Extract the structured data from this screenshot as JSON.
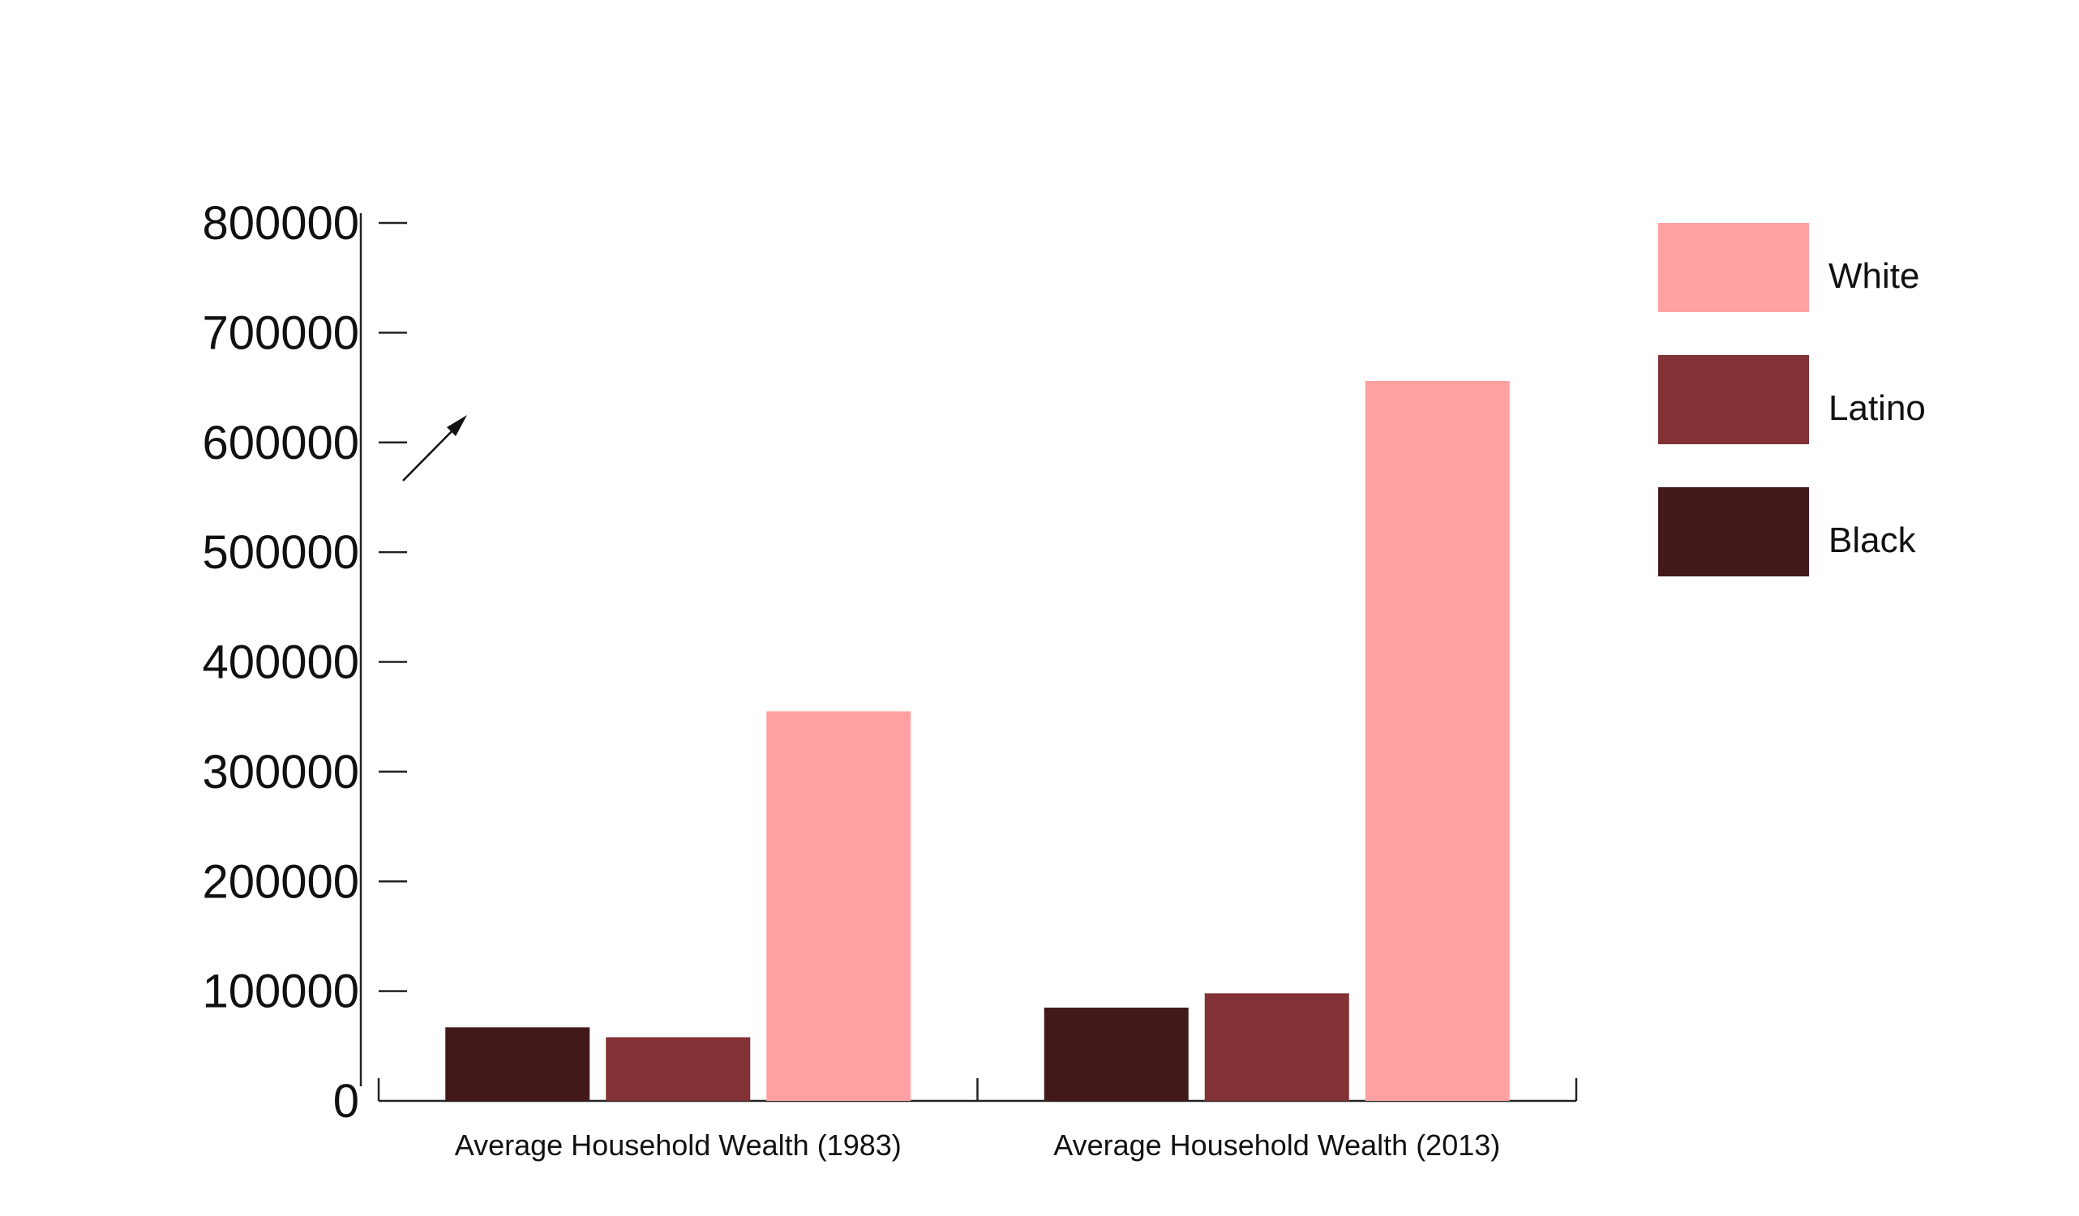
{
  "chart_data": {
    "type": "bar",
    "title": "",
    "xlabel": "",
    "ylabel": "",
    "categories": [
      "Average Household Wealth (1983)",
      "Average Household Wealth (2013)"
    ],
    "ylim": [
      0,
      800000
    ],
    "yticks": [
      "0",
      "100000",
      "200000",
      "300000",
      "400000",
      "500000",
      "600000",
      "700000",
      "800000"
    ],
    "grid": false,
    "legend_position": "top-right",
    "series": [
      {
        "name": "Black",
        "color": "#42191a",
        "values": [
          67000,
          85000
        ]
      },
      {
        "name": "Latino",
        "color": "#823135",
        "values": [
          58000,
          98000
        ]
      },
      {
        "name": "White",
        "color": "#ffa1a2",
        "values": [
          355000,
          656000
        ]
      }
    ],
    "legend_order": [
      "White",
      "Latino",
      "Black"
    ]
  }
}
